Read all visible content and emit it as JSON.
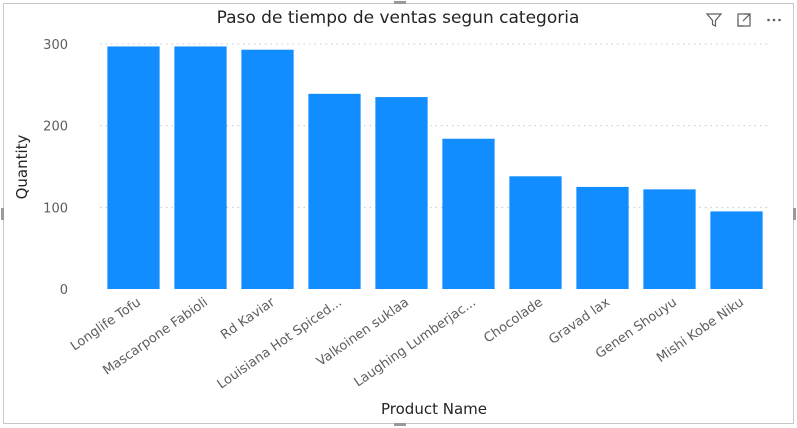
{
  "chart_data": {
    "type": "bar",
    "title": "Paso de tiempo de ventas segun categoria",
    "xlabel": "Product Name",
    "ylabel": "Quantity",
    "categories": [
      "Longlife Tofu",
      "Mascarpone Fabioli",
      "Rd Kaviar",
      "Louisiana Hot Spiced...",
      "Valkoinen suklaa",
      "Laughing Lumberjac...",
      "Chocolade",
      "Gravad lax",
      "Genen Shouyu",
      "Mishi Kobe Niku"
    ],
    "values": [
      297,
      297,
      293,
      239,
      235,
      184,
      138,
      125,
      122,
      95
    ],
    "yticks": [
      0,
      100,
      200,
      300
    ],
    "ylim": [
      0,
      300
    ],
    "grid": true,
    "bar_color": "#118dff",
    "grid_color": "#c8c8c8"
  },
  "header": {
    "icons": [
      "filter-icon",
      "focus-mode-icon",
      "more-options-icon"
    ]
  }
}
